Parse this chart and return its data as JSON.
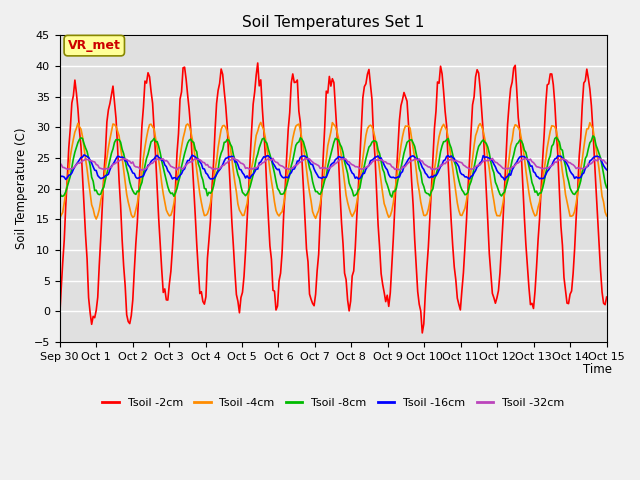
{
  "title": "Soil Temperatures Set 1",
  "xlabel": "Time",
  "ylabel": "Soil Temperature (C)",
  "ylim": [
    -5,
    45
  ],
  "yticks": [
    -5,
    0,
    5,
    10,
    15,
    20,
    25,
    30,
    35,
    40,
    45
  ],
  "series_colors": {
    "2cm": "#FF0000",
    "4cm": "#FF8C00",
    "8cm": "#00BB00",
    "16cm": "#0000FF",
    "32cm": "#BB44BB"
  },
  "series_labels": {
    "2cm": "Tsoil -2cm",
    "4cm": "Tsoil -4cm",
    "8cm": "Tsoil -8cm",
    "16cm": "Tsoil -16cm",
    "32cm": "Tsoil -32cm"
  },
  "xtick_positions": [
    0,
    1,
    2,
    3,
    4,
    5,
    6,
    7,
    8,
    9,
    10,
    11,
    12,
    13,
    14,
    15
  ],
  "xtick_labels": [
    "Sep 30",
    "Oct 1",
    "Oct 2",
    "Oct 3",
    "Oct 4",
    "Oct 5",
    "Oct 6",
    "Oct 7",
    "Oct 8",
    "Oct 9",
    "Oct 10",
    "Oct 11",
    "Oct 12",
    "Oct 13",
    "Oct 14",
    "Oct 15"
  ],
  "annotation_text": "VR_met",
  "annotation_color": "#CC0000",
  "annotation_bg": "#FFFF99",
  "annotation_edge": "#888800",
  "background_color": "#E0E0E0",
  "fig_background": "#F0F0F0",
  "grid_color": "#FFFFFF",
  "line_width": 1.2,
  "n_days": 15,
  "hours_per_day": 24
}
